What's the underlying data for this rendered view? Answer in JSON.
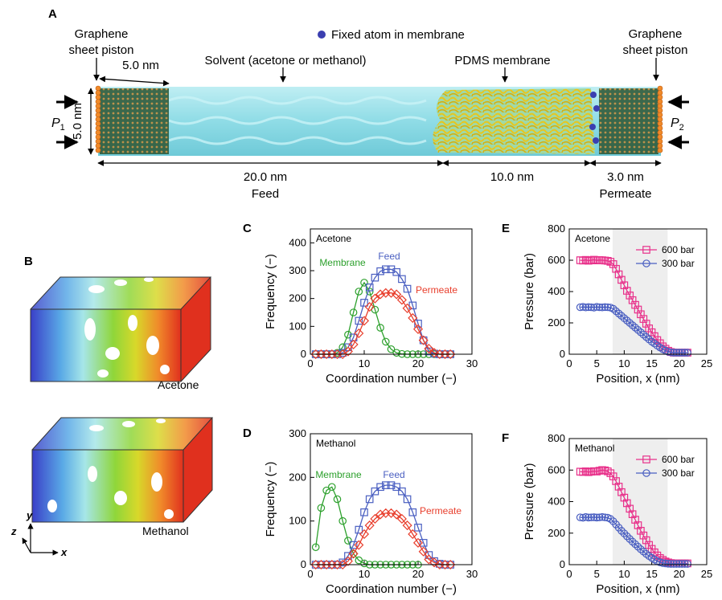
{
  "panel_a": {
    "label": "A",
    "fixed_atom": "Fixed atom in membrane",
    "left_piston": [
      "Graphene",
      "sheet piston"
    ],
    "right_piston": [
      "Graphene",
      "sheet piston"
    ],
    "width_dim": "5.0 nm",
    "height_dim": "5.0 nm",
    "solvent": "Solvent (acetone or methanol)",
    "membrane": "PDMS membrane",
    "p1": "P",
    "p1_sub": "1",
    "p2": "P",
    "p2_sub": "2",
    "feed_len": "20.0 nm",
    "feed": "Feed",
    "mem_len": "10.0 nm",
    "perm_len": "3.0 nm",
    "permeate": "Permeate",
    "colors": {
      "solvent": "#8fdce6",
      "membrane": "#e8d23a",
      "piston": "#f08a2a",
      "fixed_atom": "#3b3fb0"
    }
  },
  "panel_b": {
    "label": "B",
    "acetone": "Acetone",
    "methanol": "Methanol",
    "axes": {
      "x": "x",
      "y": "y",
      "z": "z"
    }
  },
  "chart_data": [
    {
      "id": "C",
      "type": "line",
      "label": "C",
      "annotation": "Acetone",
      "xlabel": "Coordination number (−)",
      "ylabel": "Frequency (−)",
      "xlim": [
        0,
        30
      ],
      "ylim": [
        0,
        450
      ],
      "xticks": [
        "0",
        "10",
        "20",
        "30"
      ],
      "yticks": [
        "0",
        "100",
        "200",
        "300",
        "400"
      ],
      "series": [
        {
          "name": "Membrane",
          "color": "#2ca02c",
          "marker": "circle",
          "x": [
            1,
            2,
            3,
            4,
            5,
            6,
            7,
            8,
            9,
            10,
            11,
            12,
            13,
            14,
            15,
            16,
            17,
            18,
            19,
            20,
            21,
            22,
            23,
            24,
            25,
            26
          ],
          "y": [
            0,
            0,
            0,
            0,
            5,
            25,
            70,
            150,
            225,
            257,
            225,
            160,
            95,
            45,
            18,
            5,
            1,
            0,
            0,
            0,
            0,
            0,
            0,
            0,
            0,
            0
          ]
        },
        {
          "name": "Feed",
          "color": "#4a5fc1",
          "marker": "square",
          "x": [
            1,
            2,
            3,
            4,
            5,
            6,
            7,
            8,
            9,
            10,
            11,
            12,
            13,
            14,
            15,
            16,
            17,
            18,
            19,
            20,
            21,
            22,
            23,
            24,
            25,
            26
          ],
          "y": [
            0,
            0,
            0,
            0,
            0,
            5,
            25,
            60,
            120,
            185,
            240,
            275,
            298,
            305,
            305,
            295,
            270,
            235,
            175,
            110,
            50,
            10,
            2,
            0,
            0,
            0
          ]
        },
        {
          "name": "Permeate",
          "color": "#e83e2c",
          "marker": "diamond",
          "x": [
            1,
            2,
            3,
            4,
            5,
            6,
            7,
            8,
            9,
            10,
            11,
            12,
            13,
            14,
            15,
            16,
            17,
            18,
            19,
            20,
            21,
            22,
            23,
            24,
            25,
            26
          ],
          "y": [
            0,
            0,
            0,
            0,
            0,
            0,
            10,
            35,
            75,
            120,
            170,
            200,
            215,
            220,
            220,
            215,
            195,
            165,
            130,
            90,
            50,
            20,
            5,
            0,
            0,
            0
          ]
        }
      ]
    },
    {
      "id": "D",
      "type": "line",
      "label": "D",
      "annotation": "Methanol",
      "xlabel": "Coordination number (−)",
      "ylabel": "Frequency (−)",
      "xlim": [
        0,
        30
      ],
      "ylim": [
        0,
        300
      ],
      "xticks": [
        "0",
        "10",
        "20",
        "30"
      ],
      "yticks": [
        "0",
        "100",
        "200",
        "300"
      ],
      "series": [
        {
          "name": "Membrane",
          "color": "#2ca02c",
          "marker": "circle",
          "x": [
            1,
            2,
            3,
            4,
            5,
            6,
            7,
            8,
            9,
            10,
            11,
            12,
            13,
            14,
            15,
            16,
            17,
            18,
            19,
            20
          ],
          "y": [
            40,
            130,
            170,
            178,
            150,
            100,
            55,
            25,
            10,
            3,
            0,
            0,
            0,
            0,
            0,
            0,
            0,
            0,
            0,
            0
          ]
        },
        {
          "name": "Feed",
          "color": "#4a5fc1",
          "marker": "square",
          "x": [
            1,
            2,
            3,
            4,
            5,
            6,
            7,
            8,
            9,
            10,
            11,
            12,
            13,
            14,
            15,
            16,
            17,
            18,
            19,
            20,
            21,
            22,
            23,
            24,
            25,
            26
          ],
          "y": [
            0,
            0,
            0,
            0,
            0,
            5,
            20,
            45,
            80,
            120,
            150,
            168,
            178,
            182,
            182,
            178,
            168,
            150,
            120,
            85,
            50,
            22,
            8,
            2,
            0,
            0
          ]
        },
        {
          "name": "Permeate",
          "color": "#e83e2c",
          "marker": "diamond",
          "x": [
            1,
            2,
            3,
            4,
            5,
            6,
            7,
            8,
            9,
            10,
            11,
            12,
            13,
            14,
            15,
            16,
            17,
            18,
            19,
            20,
            21,
            22,
            23,
            24,
            25,
            26
          ],
          "y": [
            0,
            0,
            0,
            0,
            0,
            0,
            8,
            25,
            45,
            70,
            90,
            105,
            115,
            118,
            118,
            115,
            105,
            90,
            70,
            50,
            30,
            12,
            5,
            0,
            0,
            0
          ]
        }
      ]
    },
    {
      "id": "E",
      "type": "line",
      "label": "E",
      "annotation": "Acetone",
      "xlabel": "Position, x (nm)",
      "ylabel": "Pressure (bar)",
      "xlim": [
        0,
        25
      ],
      "ylim": [
        0,
        800
      ],
      "xticks": [
        "0",
        "5",
        "10",
        "15",
        "20",
        "25"
      ],
      "yticks": [
        "0",
        "200",
        "400",
        "600",
        "800"
      ],
      "shaded_region": [
        7.9,
        17.9
      ],
      "legend_position": "top-right",
      "series": [
        {
          "name": "600 bar",
          "color": "#e8308a",
          "marker": "square",
          "x": [
            2,
            2.5,
            3,
            3.5,
            4,
            4.5,
            5,
            5.5,
            6,
            6.5,
            7,
            7.5,
            8,
            8.5,
            9,
            9.5,
            10,
            10.5,
            11,
            11.5,
            12,
            12.5,
            13,
            13.5,
            14,
            14.5,
            15,
            15.5,
            16,
            16.5,
            17,
            17.5,
            18,
            18.5,
            19,
            19.5,
            20,
            20.5,
            21,
            21.5
          ],
          "y": [
            600,
            598,
            602,
            597,
            600,
            603,
            599,
            601,
            600,
            598,
            596,
            590,
            575,
            545,
            510,
            475,
            440,
            405,
            375,
            345,
            315,
            285,
            255,
            225,
            195,
            165,
            140,
            115,
            90,
            70,
            50,
            35,
            22,
            14,
            10,
            10,
            10,
            10,
            10,
            10
          ]
        },
        {
          "name": "300 bar",
          "color": "#4a5fc1",
          "marker": "circle",
          "x": [
            2,
            2.5,
            3,
            3.5,
            4,
            4.5,
            5,
            5.5,
            6,
            6.5,
            7,
            7.5,
            8,
            8.5,
            9,
            9.5,
            10,
            10.5,
            11,
            11.5,
            12,
            12.5,
            13,
            13.5,
            14,
            14.5,
            15,
            15.5,
            16,
            16.5,
            17,
            17.5,
            18,
            18.5,
            19,
            19.5,
            20,
            20.5,
            21,
            21.5
          ],
          "y": [
            300,
            302,
            299,
            301,
            300,
            298,
            302,
            300,
            299,
            301,
            300,
            298,
            290,
            275,
            260,
            245,
            230,
            215,
            200,
            185,
            170,
            155,
            140,
            125,
            110,
            95,
            80,
            68,
            55,
            43,
            32,
            23,
            16,
            12,
            10,
            10,
            10,
            10,
            10,
            10
          ]
        }
      ]
    },
    {
      "id": "F",
      "type": "line",
      "label": "F",
      "annotation": "Methanol",
      "xlabel": "Position, x (nm)",
      "ylabel": "Pressure (bar)",
      "xlim": [
        0,
        25
      ],
      "ylim": [
        0,
        800
      ],
      "xticks": [
        "0",
        "5",
        "10",
        "15",
        "20",
        "25"
      ],
      "yticks": [
        "0",
        "200",
        "400",
        "600",
        "800"
      ],
      "shaded_region": [
        7.9,
        17.9
      ],
      "legend_position": "top-right",
      "series": [
        {
          "name": "600 bar",
          "color": "#e8308a",
          "marker": "square",
          "x": [
            2,
            2.5,
            3,
            3.5,
            4,
            4.5,
            5,
            5.5,
            6,
            6.5,
            7,
            7.5,
            8,
            8.5,
            9,
            9.5,
            10,
            10.5,
            11,
            11.5,
            12,
            12.5,
            13,
            13.5,
            14,
            14.5,
            15,
            15.5,
            16,
            16.5,
            17,
            17.5,
            18,
            18.5,
            19,
            19.5,
            20,
            20.5,
            21,
            21.5
          ],
          "y": [
            590,
            588,
            592,
            587,
            590,
            593,
            591,
            596,
            600,
            598,
            592,
            580,
            560,
            530,
            495,
            460,
            425,
            390,
            355,
            320,
            285,
            250,
            215,
            185,
            155,
            125,
            100,
            78,
            58,
            42,
            30,
            20,
            14,
            10,
            8,
            8,
            8,
            8,
            8,
            8
          ]
        },
        {
          "name": "300 bar",
          "color": "#4a5fc1",
          "marker": "circle",
          "x": [
            2,
            2.5,
            3,
            3.5,
            4,
            4.5,
            5,
            5.5,
            6,
            6.5,
            7,
            7.5,
            8,
            8.5,
            9,
            9.5,
            10,
            10.5,
            11,
            11.5,
            12,
            12.5,
            13,
            13.5,
            14,
            14.5,
            15,
            15.5,
            16,
            16.5,
            17,
            17.5,
            18,
            18.5,
            19,
            19.5,
            20,
            20.5,
            21,
            21.5
          ],
          "y": [
            300,
            298,
            302,
            299,
            300,
            301,
            299,
            300,
            302,
            300,
            298,
            290,
            275,
            255,
            235,
            215,
            198,
            180,
            163,
            146,
            130,
            114,
            98,
            83,
            68,
            55,
            43,
            32,
            22,
            15,
            10,
            8,
            6,
            5,
            5,
            5,
            5,
            5,
            5,
            5
          ]
        }
      ]
    }
  ]
}
